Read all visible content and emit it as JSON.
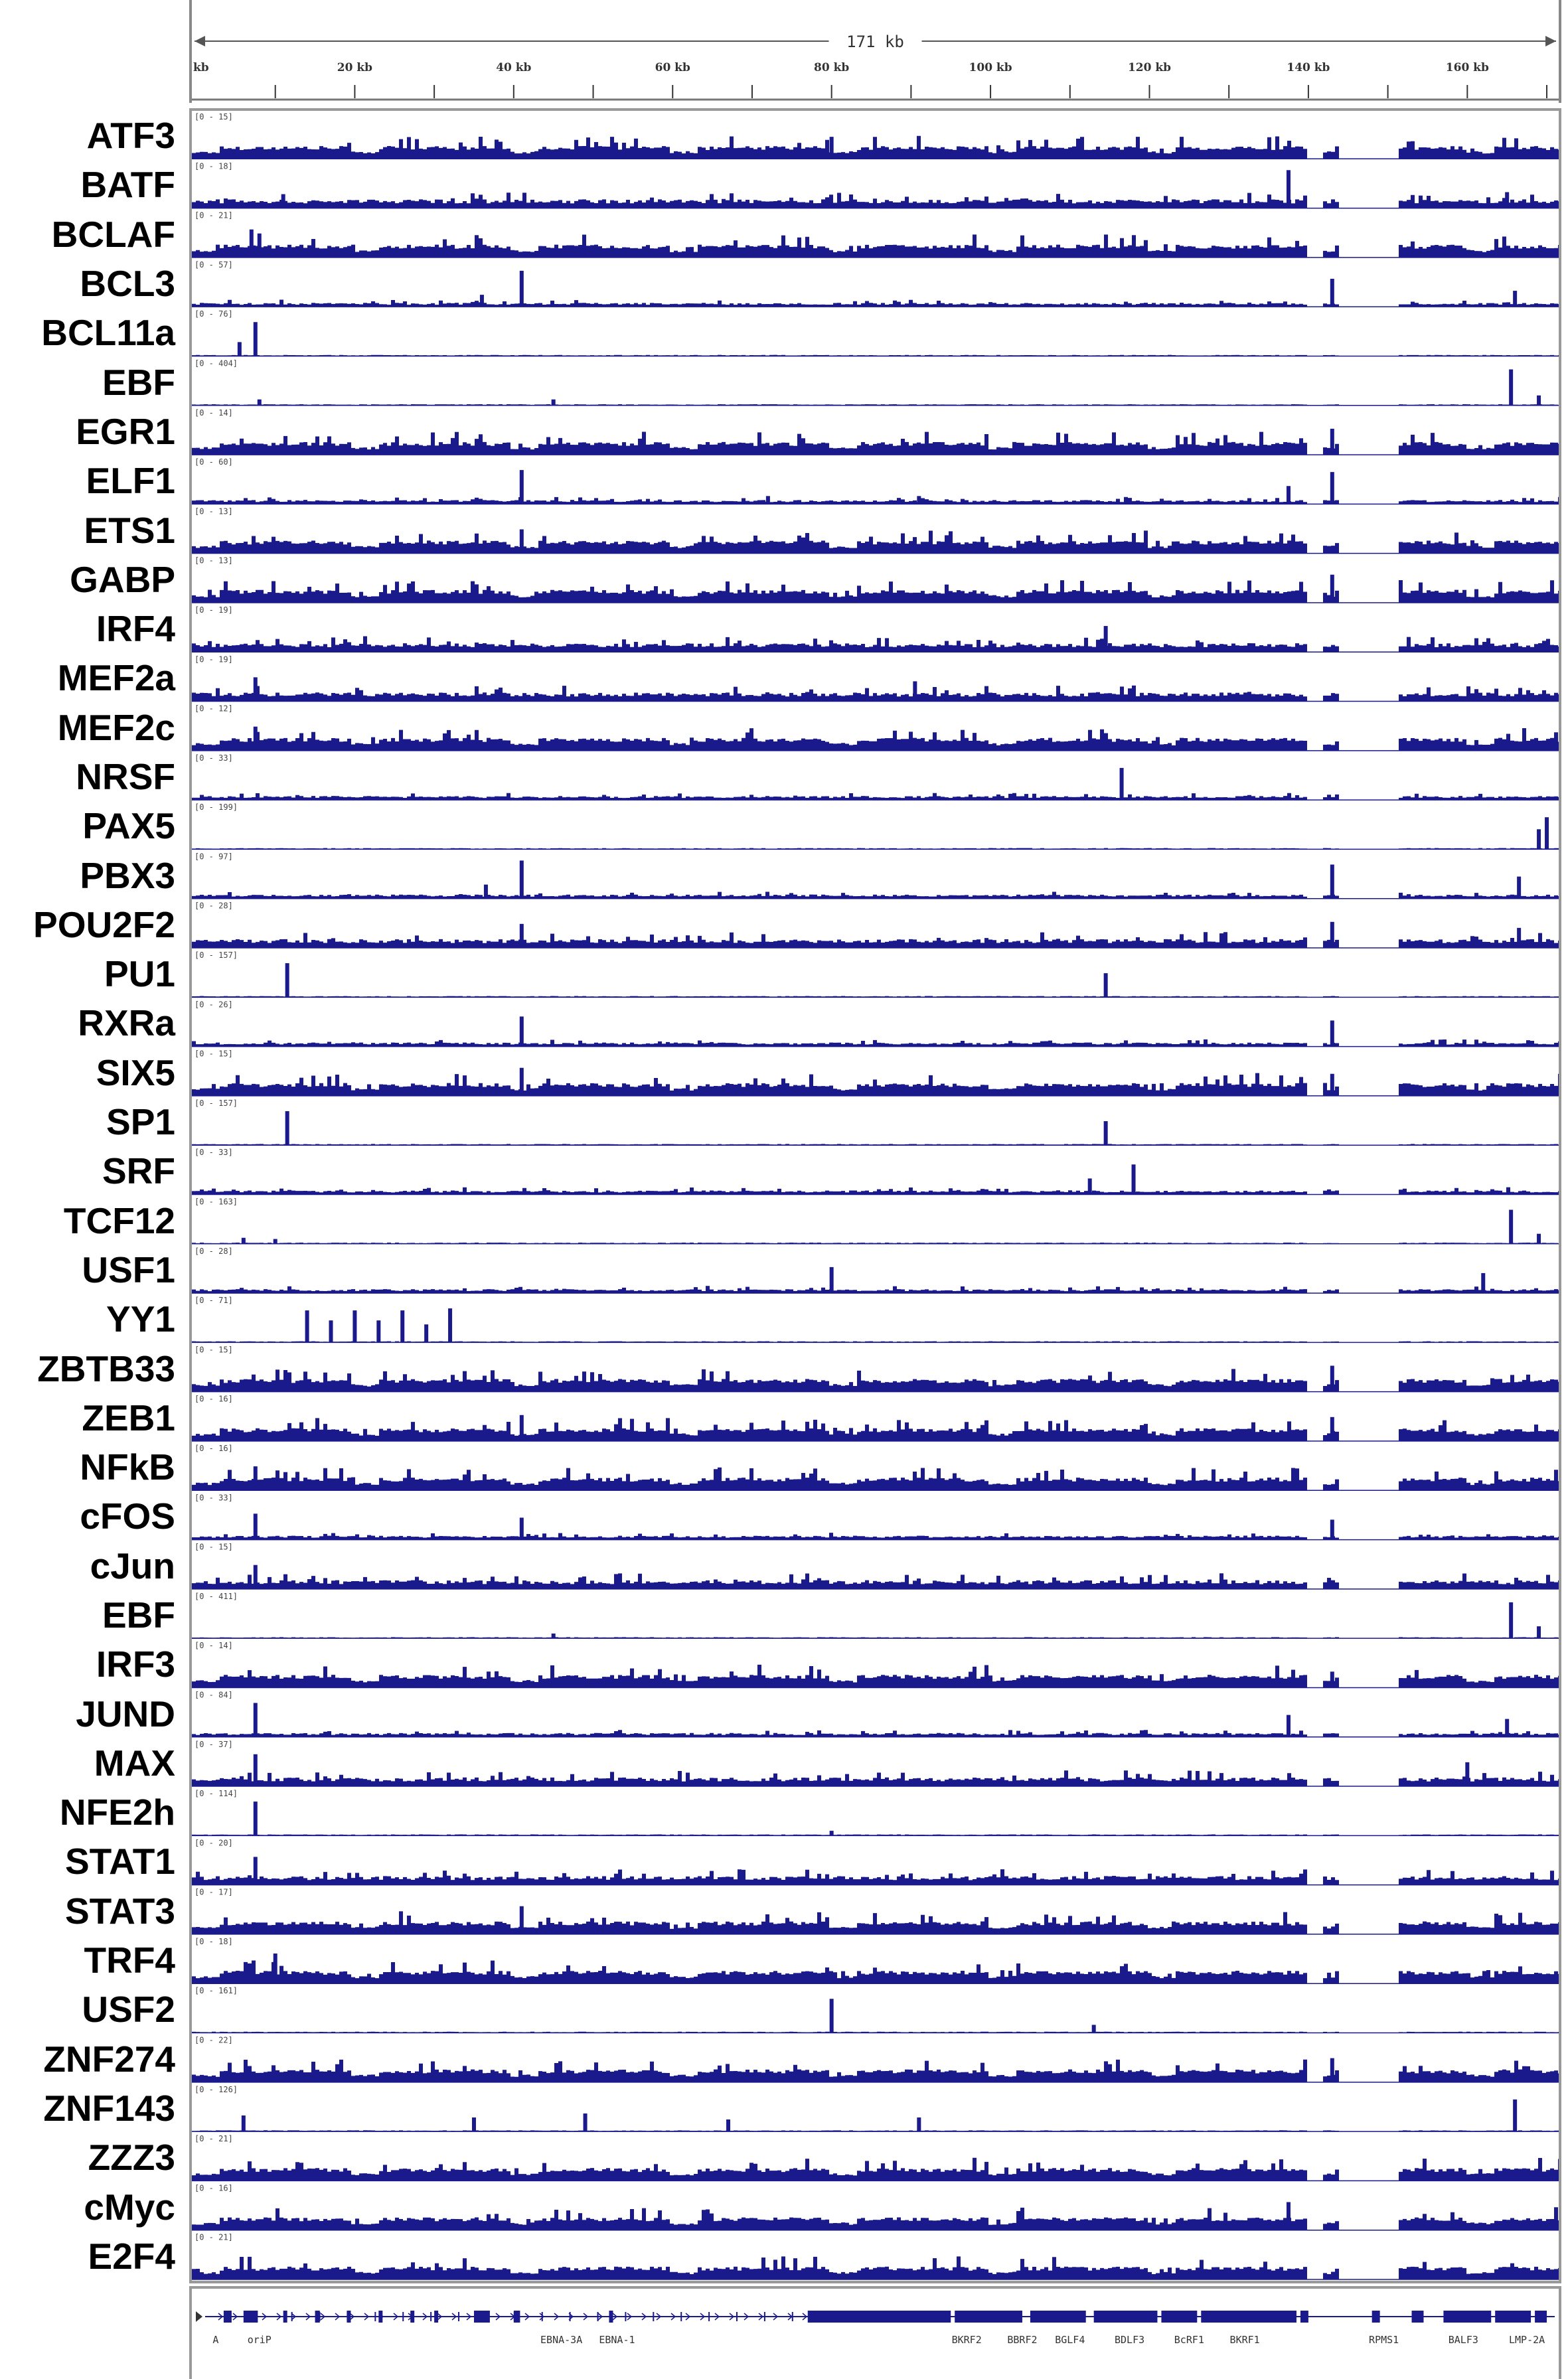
{
  "colors": {
    "signal": "#1a1a8c",
    "ruler": "#555555",
    "gene": "#1a1a8c"
  },
  "ruler": {
    "span_label": "171 kb",
    "start_label": "kb",
    "ticks": [
      {
        "kb": 20,
        "label": "20 kb"
      },
      {
        "kb": 40,
        "label": "40 kb"
      },
      {
        "kb": 60,
        "label": "60 kb"
      },
      {
        "kb": 80,
        "label": "80 kb"
      },
      {
        "kb": 100,
        "label": "100 kb"
      },
      {
        "kb": 120,
        "label": "120 kb"
      },
      {
        "kb": 140,
        "label": "140 kb"
      },
      {
        "kb": 160,
        "label": "160 kb"
      }
    ],
    "genome_kb": 171
  },
  "tracks": [
    {
      "name": "ATF3",
      "range": "[0 - 15]",
      "profile": "dense",
      "peaks": [
        [
          80,
          0.55
        ]
      ]
    },
    {
      "name": "BATF",
      "range": "[0 - 18]",
      "profile": "medium",
      "peaks": [
        [
          137.5,
          0.95
        ],
        [
          11,
          0.35
        ],
        [
          165,
          0.4
        ]
      ]
    },
    {
      "name": "BCLAF",
      "range": "[0 - 21]",
      "profile": "dense",
      "peaks": [
        [
          7,
          0.7
        ],
        [
          8,
          0.6
        ]
      ]
    },
    {
      "name": "BCL3",
      "range": "[0 - 57]",
      "profile": "sparse",
      "peaks": [
        [
          41,
          0.9
        ],
        [
          143,
          0.7
        ],
        [
          36,
          0.3
        ],
        [
          166,
          0.4
        ]
      ]
    },
    {
      "name": "BCL11a",
      "range": "[0 - 76]",
      "profile": "flat",
      "peaks": [
        [
          7.5,
          0.85
        ],
        [
          5.5,
          0.35
        ]
      ]
    },
    {
      "name": "EBF",
      "range": "[0 - 404]",
      "profile": "flat",
      "peaks": [
        [
          165.5,
          0.9
        ],
        [
          169,
          0.25
        ],
        [
          45,
          0.15
        ],
        [
          8,
          0.15
        ]
      ]
    },
    {
      "name": "EGR1",
      "range": "[0 - 14]",
      "profile": "dense",
      "peaks": [
        [
          143,
          0.65
        ]
      ]
    },
    {
      "name": "ELF1",
      "range": "[0 - 60]",
      "profile": "sparse",
      "peaks": [
        [
          41,
          0.85
        ],
        [
          143,
          0.8
        ],
        [
          137.5,
          0.45
        ],
        [
          72,
          0.2
        ],
        [
          91,
          0.2
        ]
      ]
    },
    {
      "name": "ETS1",
      "range": "[0 - 13]",
      "profile": "dense",
      "peaks": [
        [
          41,
          0.6
        ]
      ]
    },
    {
      "name": "GABP",
      "range": "[0 - 13]",
      "profile": "dense",
      "peaks": [
        [
          143,
          0.7
        ]
      ]
    },
    {
      "name": "IRF4",
      "range": "[0 - 19]",
      "profile": "medium",
      "peaks": [
        [
          114.5,
          0.65
        ]
      ]
    },
    {
      "name": "MEF2a",
      "range": "[0 - 19]",
      "profile": "medium",
      "peaks": [
        [
          7.5,
          0.6
        ],
        [
          90.5,
          0.5
        ]
      ]
    },
    {
      "name": "MEF2c",
      "range": "[0 - 12]",
      "profile": "dense",
      "peaks": [
        [
          7.5,
          0.6
        ]
      ]
    },
    {
      "name": "NRSF",
      "range": "[0 - 33]",
      "profile": "sparse",
      "peaks": [
        [
          116.5,
          0.8
        ]
      ]
    },
    {
      "name": "PAX5",
      "range": "[0 - 199]",
      "profile": "flat",
      "peaks": [
        [
          170,
          0.8
        ],
        [
          169,
          0.5
        ]
      ]
    },
    {
      "name": "PBX3",
      "range": "[0 - 97]",
      "profile": "sparse",
      "peaks": [
        [
          41,
          0.95
        ],
        [
          143,
          0.85
        ],
        [
          166.5,
          0.55
        ],
        [
          36.5,
          0.35
        ]
      ]
    },
    {
      "name": "POU2F2",
      "range": "[0 - 28]",
      "profile": "medium",
      "peaks": [
        [
          41,
          0.6
        ],
        [
          143,
          0.65
        ],
        [
          166.5,
          0.5
        ]
      ]
    },
    {
      "name": "PU1",
      "range": "[0 - 157]",
      "profile": "flat",
      "peaks": [
        [
          11.5,
          0.85
        ],
        [
          114.5,
          0.6
        ]
      ]
    },
    {
      "name": "RXRa",
      "range": "[0 - 26]",
      "profile": "sparse",
      "peaks": [
        [
          41,
          0.75
        ],
        [
          143,
          0.65
        ]
      ]
    },
    {
      "name": "SIX5",
      "range": "[0 - 15]",
      "profile": "dense",
      "peaks": [
        [
          41,
          0.7
        ],
        [
          143,
          0.55
        ]
      ]
    },
    {
      "name": "SP1",
      "range": "[0 - 157]",
      "profile": "flat",
      "peaks": [
        [
          11.5,
          0.85
        ],
        [
          114.5,
          0.6
        ]
      ]
    },
    {
      "name": "SRF",
      "range": "[0 - 33]",
      "profile": "sparse",
      "peaks": [
        [
          118,
          0.75
        ],
        [
          112.5,
          0.4
        ]
      ]
    },
    {
      "name": "TCF12",
      "range": "[0 - 163]",
      "profile": "flat",
      "peaks": [
        [
          165.5,
          0.85
        ],
        [
          169,
          0.25
        ],
        [
          6,
          0.15
        ],
        [
          10,
          0.12
        ]
      ]
    },
    {
      "name": "USF1",
      "range": "[0 - 28]",
      "profile": "sparse",
      "peaks": [
        [
          80,
          0.65
        ],
        [
          162,
          0.5
        ]
      ]
    },
    {
      "name": "YY1",
      "range": "[0 - 71]",
      "profile": "flat",
      "peaks": [
        [
          14,
          0.8
        ],
        [
          17,
          0.55
        ],
        [
          20,
          0.8
        ],
        [
          23,
          0.55
        ],
        [
          26,
          0.8
        ],
        [
          29,
          0.45
        ],
        [
          32,
          0.85
        ]
      ]
    },
    {
      "name": "ZBTB33",
      "range": "[0 - 15]",
      "profile": "dense",
      "peaks": [
        [
          143,
          0.65
        ]
      ]
    },
    {
      "name": "ZEB1",
      "range": "[0 - 16]",
      "profile": "dense",
      "peaks": [
        [
          41,
          0.65
        ],
        [
          143,
          0.6
        ]
      ]
    },
    {
      "name": "NFkB",
      "range": "[0 - 16]",
      "profile": "dense",
      "peaks": [
        [
          7.5,
          0.6
        ]
      ]
    },
    {
      "name": "cFOS",
      "range": "[0 - 33]",
      "profile": "sparse",
      "peaks": [
        [
          7.5,
          0.65
        ],
        [
          41,
          0.55
        ],
        [
          143,
          0.5
        ]
      ]
    },
    {
      "name": "cJun",
      "range": "[0 - 15]",
      "profile": "medium",
      "peaks": [
        [
          7.5,
          0.6
        ]
      ]
    },
    {
      "name": "EBF",
      "range": "[0 - 411]",
      "profile": "flat",
      "peaks": [
        [
          165.5,
          0.9
        ],
        [
          169,
          0.3
        ],
        [
          45,
          0.12
        ]
      ]
    },
    {
      "name": "IRF3",
      "range": "[0 - 14]",
      "profile": "dense",
      "peaks": [
        [
          143,
          0.4
        ]
      ]
    },
    {
      "name": "JUND",
      "range": "[0 - 84]",
      "profile": "sparse",
      "peaks": [
        [
          7.5,
          0.85
        ],
        [
          137.5,
          0.55
        ],
        [
          165,
          0.45
        ]
      ]
    },
    {
      "name": "MAX",
      "range": "[0 - 37]",
      "profile": "medium",
      "peaks": [
        [
          7.5,
          0.8
        ],
        [
          160,
          0.6
        ]
      ]
    },
    {
      "name": "NFE2h",
      "range": "[0 - 114]",
      "profile": "flat",
      "peaks": [
        [
          7.5,
          0.85
        ],
        [
          80,
          0.12
        ]
      ]
    },
    {
      "name": "STAT1",
      "range": "[0 - 20]",
      "profile": "medium",
      "peaks": [
        [
          7.5,
          0.7
        ]
      ]
    },
    {
      "name": "STAT3",
      "range": "[0 - 17]",
      "profile": "dense",
      "peaks": [
        [
          41,
          0.7
        ]
      ]
    },
    {
      "name": "TRF4",
      "range": "[0 - 18]",
      "profile": "dense",
      "peaks": [
        [
          10,
          0.75
        ]
      ]
    },
    {
      "name": "USF2",
      "range": "[0 - 161]",
      "profile": "flat",
      "peaks": [
        [
          80,
          0.85
        ],
        [
          113,
          0.2
        ]
      ]
    },
    {
      "name": "ZNF274",
      "range": "[0 - 22]",
      "profile": "dense",
      "peaks": [
        [
          143,
          0.6
        ]
      ]
    },
    {
      "name": "ZNF143",
      "range": "[0 - 126]",
      "profile": "flat",
      "peaks": [
        [
          166,
          0.8
        ],
        [
          49,
          0.45
        ],
        [
          35,
          0.35
        ],
        [
          6,
          0.4
        ],
        [
          67,
          0.3
        ],
        [
          91,
          0.35
        ]
      ]
    },
    {
      "name": "ZZZ3",
      "range": "[0 - 21]",
      "profile": "dense",
      "peaks": []
    },
    {
      "name": "cMyc",
      "range": "[0 - 16]",
      "profile": "dense",
      "peaks": [
        [
          137.5,
          0.7
        ]
      ]
    },
    {
      "name": "E2F4",
      "range": "[0 - 21]",
      "profile": "dense",
      "peaks": []
    }
  ],
  "genes": {
    "labels": [
      {
        "kb": 2.5,
        "text": "A"
      },
      {
        "kb": 8,
        "text": "oriP"
      },
      {
        "kb": 46,
        "text": "EBNA-3A"
      },
      {
        "kb": 53,
        "text": "EBNA-1"
      },
      {
        "kb": 97,
        "text": "BKRF2"
      },
      {
        "kb": 104,
        "text": "BBRF2"
      },
      {
        "kb": 110,
        "text": "BGLF4"
      },
      {
        "kb": 117.5,
        "text": "BDLF3"
      },
      {
        "kb": 125,
        "text": "BcRF1"
      },
      {
        "kb": 132,
        "text": "BKRF1"
      },
      {
        "kb": 149.5,
        "text": "RPMS1"
      },
      {
        "kb": 159.5,
        "text": "BALF3"
      },
      {
        "kb": 167.5,
        "text": "LMP-2A"
      }
    ]
  }
}
